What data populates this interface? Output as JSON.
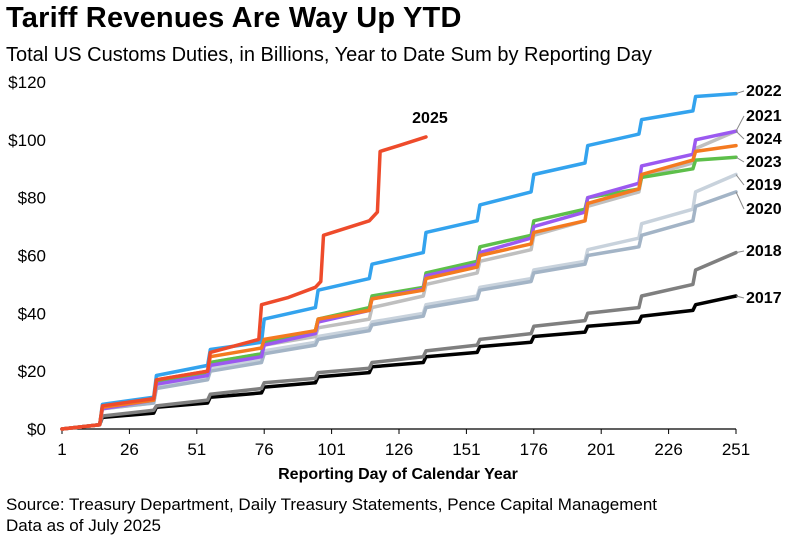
{
  "chart_data": {
    "type": "line",
    "title": "Tariff Revenues Are Way Up YTD",
    "subtitle": "Total US Customs Duties, in Billions, Year to Date Sum by Reporting Day",
    "xlabel": "Reporting Day of Calendar Year",
    "ylabel": "",
    "xlim": [
      1,
      251
    ],
    "ylim": [
      0,
      120
    ],
    "x_ticks": [
      1,
      26,
      51,
      76,
      101,
      126,
      151,
      176,
      201,
      226,
      251
    ],
    "y_ticks": [
      {
        "value": 0,
        "label": "$0"
      },
      {
        "value": 20,
        "label": "$20"
      },
      {
        "value": 40,
        "label": "$40"
      },
      {
        "value": 60,
        "label": "$60"
      },
      {
        "value": 80,
        "label": "$80"
      },
      {
        "value": 100,
        "label": "$100"
      },
      {
        "value": 120,
        "label": "$120"
      }
    ],
    "grid": false,
    "legend": "labels at line ends",
    "series": [
      {
        "name": "2017",
        "color": "#000000",
        "x": [
          1,
          15,
          16,
          35,
          36,
          55,
          56,
          75,
          76,
          95,
          96,
          115,
          116,
          135,
          136,
          155,
          156,
          175,
          176,
          195,
          196,
          215,
          216,
          235,
          236,
          251
        ],
        "y": [
          0,
          1.5,
          4,
          5.5,
          7.5,
          9,
          11,
          12.5,
          14.5,
          16,
          18,
          19.5,
          21.5,
          23,
          25,
          26.5,
          28.5,
          30,
          32,
          33.5,
          35.5,
          37,
          39,
          41,
          43,
          46
        ]
      },
      {
        "name": "2018",
        "color": "#7f7f7f",
        "x": [
          1,
          15,
          16,
          35,
          36,
          55,
          56,
          75,
          76,
          95,
          96,
          115,
          116,
          135,
          136,
          155,
          156,
          175,
          176,
          195,
          196,
          215,
          216,
          235,
          236,
          251
        ],
        "y": [
          0,
          1.5,
          4.5,
          6.5,
          8,
          10,
          12,
          14,
          16,
          17.5,
          19.5,
          21,
          23,
          25,
          27,
          29,
          31,
          33,
          35.5,
          37.5,
          40,
          42,
          46,
          50,
          55,
          61
        ]
      },
      {
        "name": "2019",
        "color": "#c8d2dc",
        "x": [
          1,
          15,
          16,
          35,
          36,
          55,
          56,
          75,
          76,
          95,
          96,
          115,
          116,
          135,
          136,
          155,
          156,
          175,
          176,
          195,
          196,
          215,
          216,
          235,
          236,
          251
        ],
        "y": [
          0,
          1.5,
          7,
          9,
          15,
          18,
          21,
          24,
          27,
          30,
          32,
          35,
          37,
          40,
          43,
          46,
          49,
          52,
          55,
          58,
          62,
          66,
          71,
          76,
          82,
          88
        ]
      },
      {
        "name": "2020",
        "color": "#a3b4c6",
        "x": [
          1,
          15,
          16,
          35,
          36,
          55,
          56,
          75,
          76,
          95,
          96,
          115,
          116,
          135,
          136,
          155,
          156,
          175,
          176,
          195,
          196,
          215,
          216,
          235,
          236,
          251
        ],
        "y": [
          0,
          1.5,
          7,
          9,
          14,
          17,
          20,
          23,
          26,
          29,
          31,
          34,
          36,
          39,
          42,
          45,
          48,
          51,
          54,
          57,
          60,
          63,
          67,
          72,
          77,
          82
        ]
      },
      {
        "name": "2021",
        "color": "#bfbfbf",
        "x": [
          1,
          15,
          16,
          35,
          36,
          55,
          56,
          75,
          76,
          95,
          96,
          115,
          116,
          135,
          136,
          155,
          156,
          175,
          176,
          195,
          196,
          215,
          216,
          235,
          236,
          251
        ],
        "y": [
          0,
          1.5,
          7.5,
          10,
          16,
          19,
          23,
          26,
          29,
          32,
          35,
          38,
          42,
          46,
          50,
          54,
          58,
          62,
          67,
          72,
          77,
          82,
          87,
          92,
          97,
          103
        ]
      },
      {
        "name": "2022",
        "color": "#33a3ee",
        "x": [
          1,
          15,
          16,
          35,
          36,
          55,
          56,
          75,
          76,
          95,
          96,
          115,
          116,
          135,
          136,
          155,
          156,
          175,
          176,
          195,
          196,
          215,
          216,
          235,
          236,
          251
        ],
        "y": [
          0,
          1.5,
          8.5,
          11,
          18.5,
          22,
          27.5,
          30,
          38,
          42,
          48,
          52,
          57,
          61,
          68,
          72,
          77.5,
          82,
          88,
          92,
          98,
          102,
          107,
          110,
          115,
          116
        ]
      },
      {
        "name": "2023",
        "color": "#5dbf4a",
        "x": [
          1,
          15,
          16,
          35,
          36,
          55,
          56,
          75,
          76,
          95,
          96,
          115,
          116,
          135,
          136,
          155,
          156,
          175,
          176,
          195,
          196,
          215,
          216,
          235,
          236,
          251
        ],
        "y": [
          0,
          1.5,
          7.5,
          10,
          16,
          19,
          23,
          26,
          30,
          34,
          38,
          42,
          46,
          49,
          54,
          58,
          63,
          67,
          72,
          76,
          80,
          83,
          87,
          90,
          93,
          94
        ]
      },
      {
        "name": "2024",
        "color": "#9b59f0",
        "x": [
          1,
          15,
          16,
          35,
          36,
          55,
          56,
          75,
          76,
          95,
          96,
          115,
          116,
          135,
          136,
          155,
          156,
          175,
          176,
          195,
          196,
          215,
          216,
          235,
          236,
          251
        ],
        "y": [
          0,
          1.5,
          7,
          10,
          15.5,
          18.5,
          22,
          25,
          29,
          33,
          37,
          41,
          45,
          48.5,
          53,
          57,
          61,
          66,
          70,
          75,
          80,
          85,
          91,
          95,
          100,
          103
        ]
      },
      {
        "name": "",
        "color": "#f47a20",
        "x": [
          1,
          15,
          16,
          35,
          36,
          55,
          56,
          75,
          76,
          95,
          96,
          115,
          116,
          135,
          136,
          155,
          156,
          175,
          176,
          195,
          196,
          215,
          216,
          235,
          236,
          251
        ],
        "y": [
          0,
          1.5,
          7.5,
          10,
          17,
          20,
          25,
          28,
          31,
          34,
          38,
          41,
          45,
          48,
          52,
          56,
          60,
          64,
          68,
          72,
          78,
          83,
          88,
          93,
          96,
          98
        ]
      },
      {
        "name": "2025",
        "color": "#ee4b2b",
        "x": [
          1,
          15,
          16,
          35,
          36,
          55,
          56,
          74,
          75,
          85,
          95,
          97,
          98,
          115,
          118,
          119,
          126,
          136
        ],
        "y": [
          0,
          1.5,
          8,
          10.5,
          17,
          20,
          26.5,
          31,
          43,
          45.5,
          49,
          51,
          67,
          72,
          75,
          96,
          98,
          101
        ]
      }
    ],
    "labels": [
      {
        "text": "2022",
        "series": "2022",
        "anchor": "right"
      },
      {
        "text": "2021",
        "series": "2021",
        "anchor": "right"
      },
      {
        "text": "2024",
        "series": "2024",
        "anchor": "right"
      },
      {
        "text": "2023",
        "series": "2023",
        "anchor": "right"
      },
      {
        "text": "2019",
        "series": "2019",
        "anchor": "right"
      },
      {
        "text": "2020",
        "series": "2020",
        "anchor": "right"
      },
      {
        "text": "2018",
        "series": "2018",
        "anchor": "right"
      },
      {
        "text": "2017",
        "series": "2017",
        "anchor": "right"
      },
      {
        "text": "2025",
        "series": "2025",
        "anchor": "top"
      }
    ]
  },
  "source": {
    "line1": "Source: Treasury Department, Daily Treasury Statements, Pence Capital Management",
    "line2": "Data as of July 2025"
  }
}
